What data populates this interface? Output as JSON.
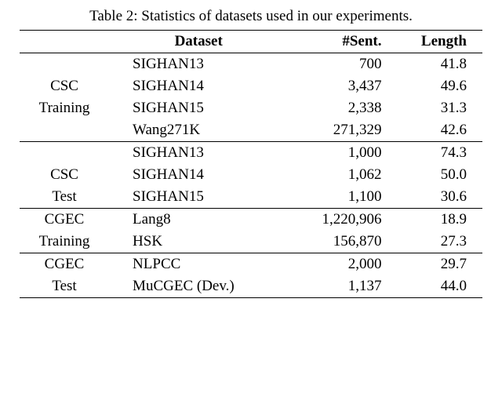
{
  "caption": "Table 2: Statistics of datasets used in our experiments.",
  "headers": {
    "group": "",
    "dataset": "Dataset",
    "sent": "#Sent.",
    "length": "Length"
  },
  "groups": [
    {
      "label_line1": "CSC",
      "label_line2": "Training",
      "rows": [
        {
          "dataset": "SIGHAN13",
          "sent": "700",
          "length": "41.8"
        },
        {
          "dataset": "SIGHAN14",
          "sent": "3,437",
          "length": "49.6"
        },
        {
          "dataset": "SIGHAN15",
          "sent": "2,338",
          "length": "31.3"
        },
        {
          "dataset": "Wang271K",
          "sent": "271,329",
          "length": "42.6"
        }
      ]
    },
    {
      "label_line1": "CSC",
      "label_line2": "Test",
      "rows": [
        {
          "dataset": "SIGHAN13",
          "sent": "1,000",
          "length": "74.3"
        },
        {
          "dataset": "SIGHAN14",
          "sent": "1,062",
          "length": "50.0"
        },
        {
          "dataset": "SIGHAN15",
          "sent": "1,100",
          "length": "30.6"
        }
      ]
    },
    {
      "label_line1": "CGEC",
      "label_line2": "Training",
      "rows": [
        {
          "dataset": "Lang8",
          "sent": "1,220,906",
          "length": "18.9"
        },
        {
          "dataset": "HSK",
          "sent": "156,870",
          "length": "27.3"
        }
      ]
    },
    {
      "label_line1": "CGEC",
      "label_line2": "Test",
      "rows": [
        {
          "dataset": "NLPCC",
          "sent": "2,000",
          "length": "29.7"
        },
        {
          "dataset": "MuCGEC (Dev.)",
          "sent": "1,137",
          "length": "44.0"
        }
      ]
    }
  ]
}
